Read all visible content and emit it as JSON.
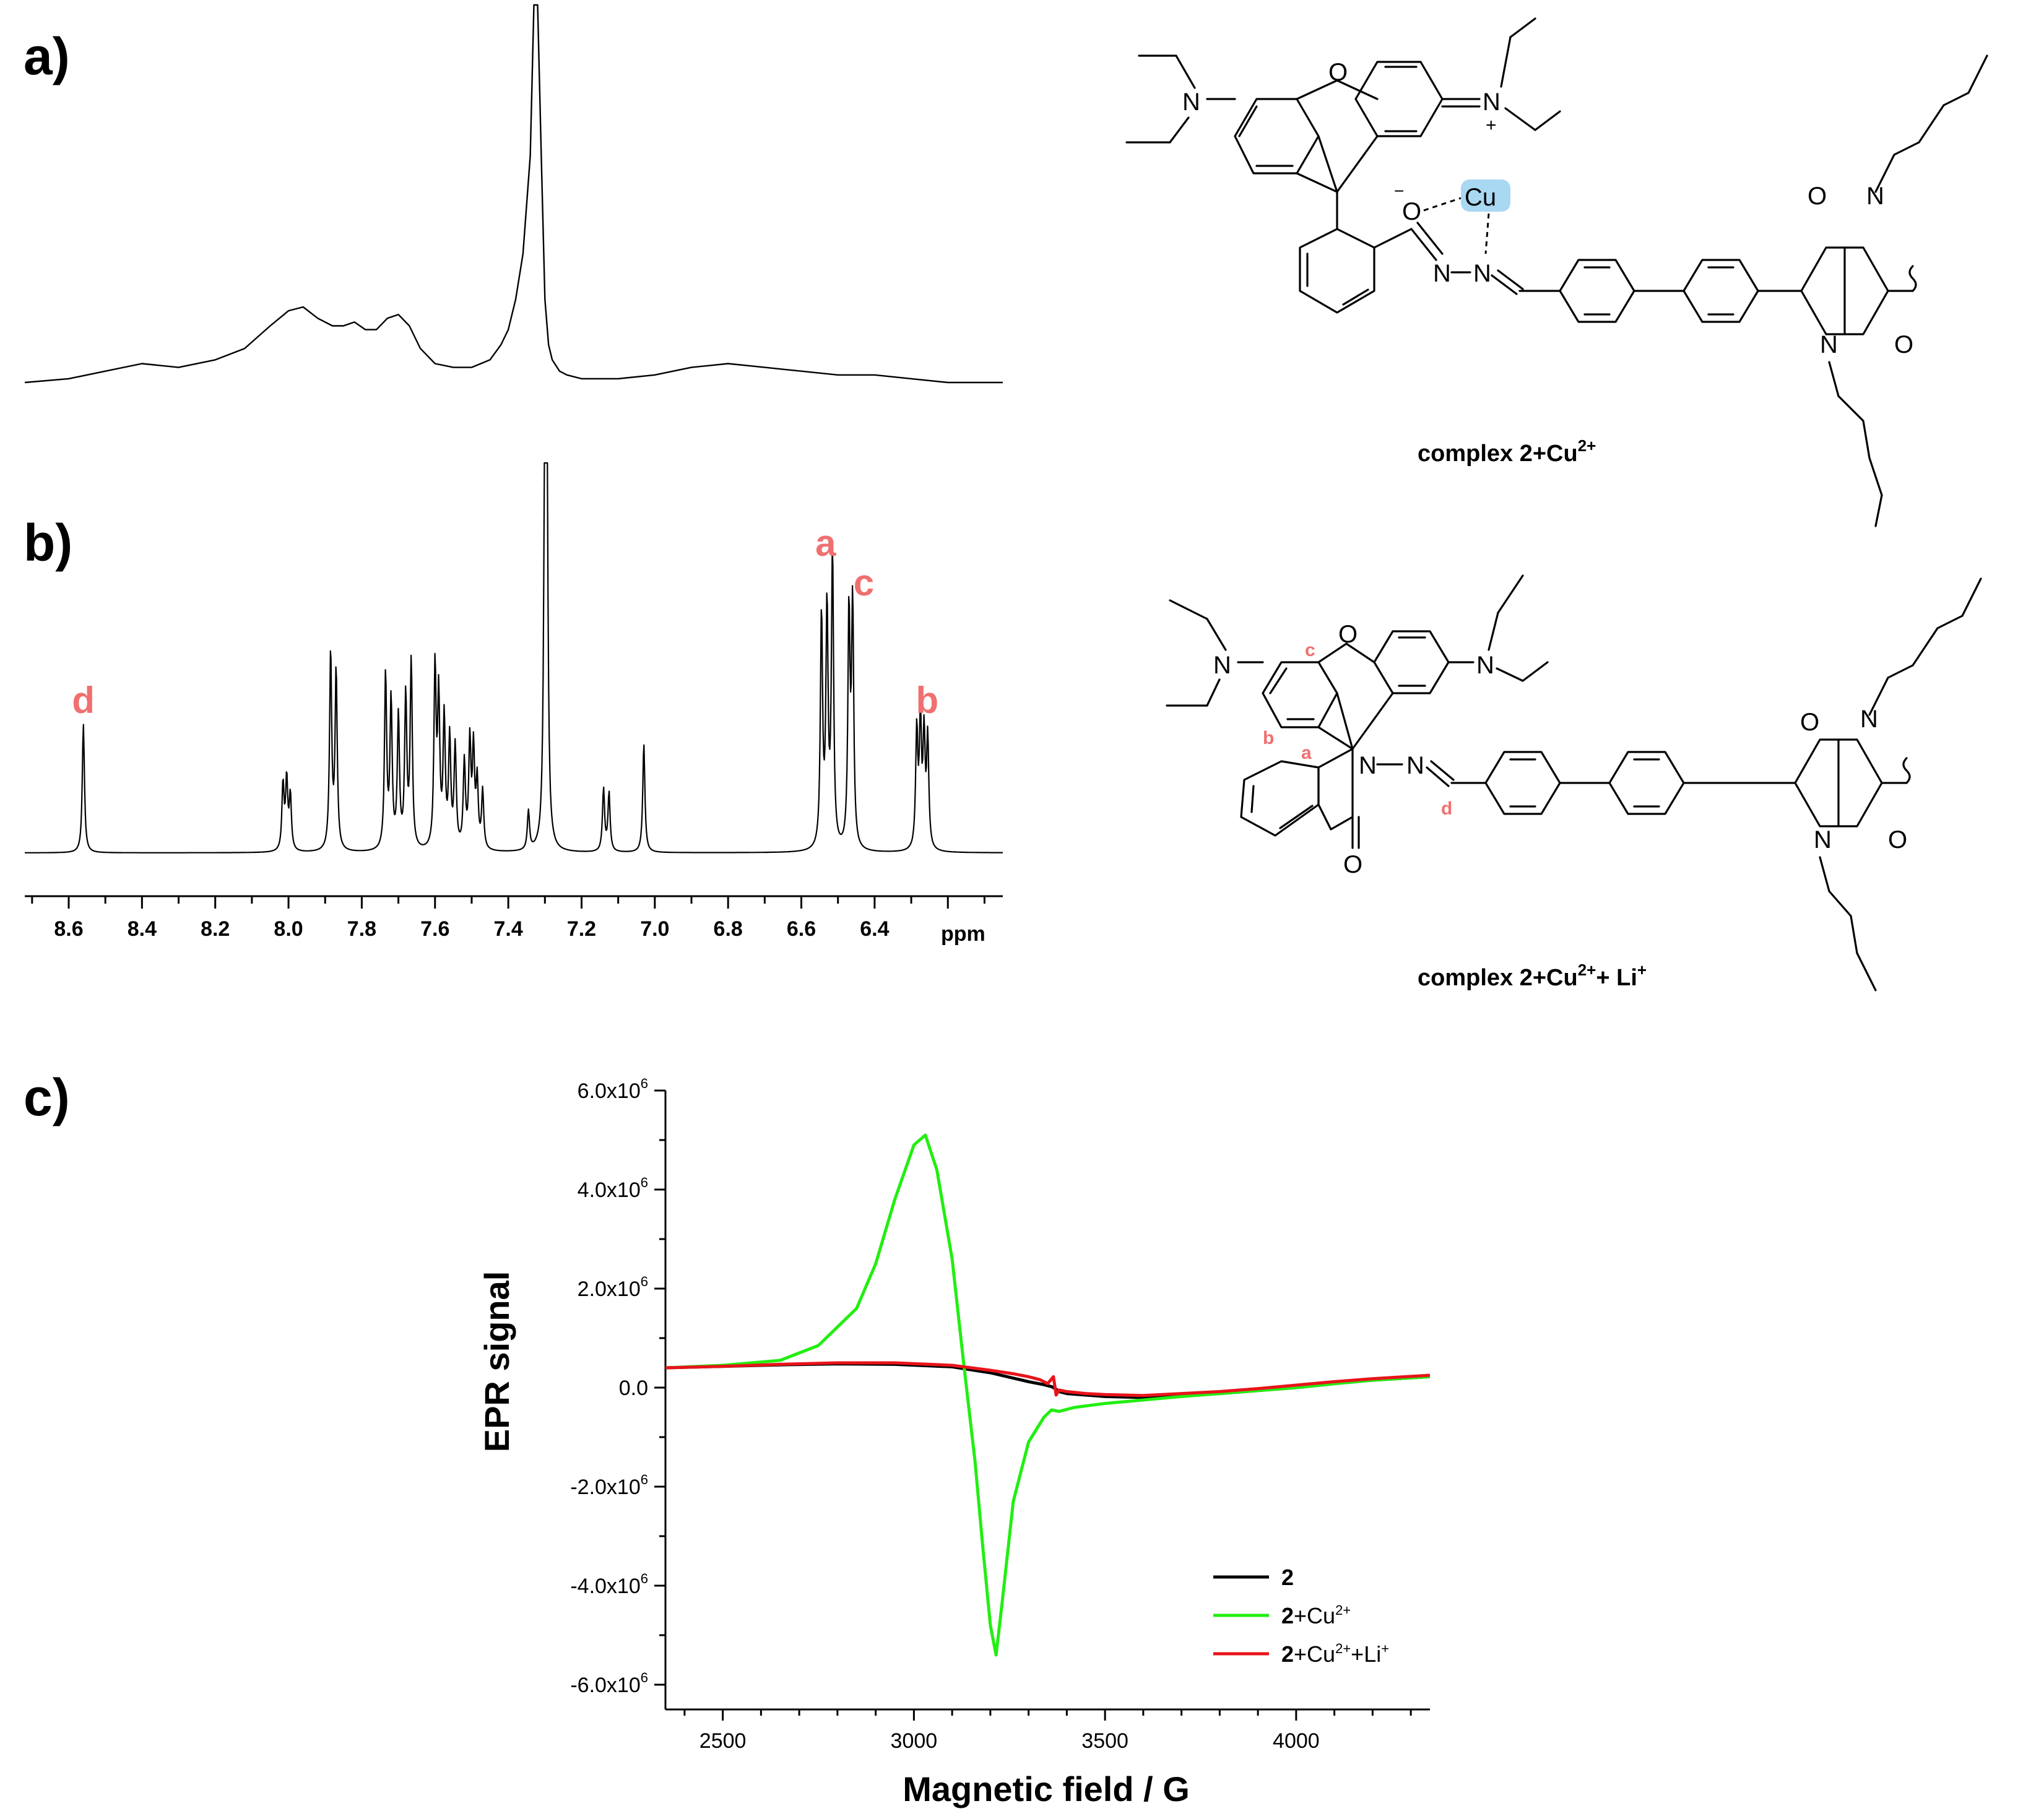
{
  "panels": {
    "a": "a)",
    "b": "b)",
    "c": "c)"
  },
  "nmr": {
    "x_ticks": [
      "8.6",
      "8.4",
      "8.2",
      "8.0",
      "7.8",
      "7.6",
      "7.4",
      "7.2",
      "7.0",
      "6.8",
      "6.6",
      "6.4"
    ],
    "unit": "ppm",
    "peak_labels": [
      {
        "text": "a",
        "ppm": 6.52
      },
      {
        "text": "c",
        "ppm": 6.46
      },
      {
        "text": "d",
        "ppm": 8.56
      },
      {
        "text": "b",
        "ppm": 6.27
      }
    ]
  },
  "structures": {
    "top_caption": {
      "main": "complex 2+Cu",
      "sup": "2+"
    },
    "bottom_caption": {
      "main": "complex 2+Cu",
      "sup1": "2+",
      "mid": "+ Li",
      "sup2": "+"
    },
    "metal_label": "Cu",
    "atom_labels": {
      "a": "a",
      "b": "b",
      "c": "c",
      "d": "d"
    },
    "highlight_color": "#a9d8f2"
  },
  "chart_data": [
    {
      "type": "line",
      "name": "nmr-a",
      "x": [
        8.72,
        8.6,
        8.5,
        8.4,
        8.3,
        8.2,
        8.12,
        8.05,
        8.0,
        7.96,
        7.92,
        7.88,
        7.85,
        7.82,
        7.79,
        7.76,
        7.73,
        7.7,
        7.67,
        7.64,
        7.6,
        7.55,
        7.5,
        7.45,
        7.42,
        7.4,
        7.38,
        7.36,
        7.34,
        7.33,
        7.32,
        7.31,
        7.3,
        7.29,
        7.28,
        7.26,
        7.24,
        7.2,
        7.1,
        7.0,
        6.9,
        6.8,
        6.7,
        6.6,
        6.5,
        6.4,
        6.3,
        6.2,
        6.05
      ],
      "y": [
        0.0,
        0.01,
        0.03,
        0.05,
        0.04,
        0.06,
        0.09,
        0.15,
        0.19,
        0.2,
        0.17,
        0.15,
        0.15,
        0.16,
        0.14,
        0.14,
        0.17,
        0.18,
        0.15,
        0.09,
        0.05,
        0.04,
        0.04,
        0.06,
        0.1,
        0.14,
        0.22,
        0.34,
        0.6,
        1.0,
        1.0,
        0.6,
        0.22,
        0.1,
        0.06,
        0.03,
        0.02,
        0.01,
        0.01,
        0.02,
        0.04,
        0.05,
        0.04,
        0.03,
        0.02,
        0.02,
        0.01,
        0.0,
        0.0
      ]
    },
    {
      "type": "line",
      "name": "nmr-b",
      "baseline_ppm": [
        8.72,
        6.05
      ],
      "peaks": [
        {
          "ppm": 8.56,
          "h": 0.33
        },
        {
          "ppm": 8.015,
          "h": 0.17
        },
        {
          "ppm": 8.005,
          "h": 0.18
        },
        {
          "ppm": 7.995,
          "h": 0.14
        },
        {
          "ppm": 7.885,
          "h": 0.51
        },
        {
          "ppm": 7.87,
          "h": 0.46
        },
        {
          "ppm": 7.735,
          "h": 0.45
        },
        {
          "ppm": 7.72,
          "h": 0.38
        },
        {
          "ppm": 7.7,
          "h": 0.34
        },
        {
          "ppm": 7.68,
          "h": 0.39
        },
        {
          "ppm": 7.665,
          "h": 0.48
        },
        {
          "ppm": 7.6,
          "h": 0.46
        },
        {
          "ppm": 7.59,
          "h": 0.38
        },
        {
          "ppm": 7.575,
          "h": 0.33
        },
        {
          "ppm": 7.56,
          "h": 0.28
        },
        {
          "ppm": 7.545,
          "h": 0.26
        },
        {
          "ppm": 7.52,
          "h": 0.22
        },
        {
          "ppm": 7.505,
          "h": 0.27
        },
        {
          "ppm": 7.495,
          "h": 0.25
        },
        {
          "ppm": 7.485,
          "h": 0.17
        },
        {
          "ppm": 7.47,
          "h": 0.15
        },
        {
          "ppm": 7.345,
          "h": 0.1
        },
        {
          "ppm": 7.3,
          "h": 1.0
        },
        {
          "ppm": 7.295,
          "h": 1.0
        },
        {
          "ppm": 7.14,
          "h": 0.16
        },
        {
          "ppm": 7.125,
          "h": 0.15
        },
        {
          "ppm": 7.03,
          "h": 0.28
        },
        {
          "ppm": 6.545,
          "h": 0.6
        },
        {
          "ppm": 6.53,
          "h": 0.61
        },
        {
          "ppm": 6.515,
          "h": 0.76
        },
        {
          "ppm": 6.47,
          "h": 0.6
        },
        {
          "ppm": 6.46,
          "h": 0.62
        },
        {
          "ppm": 6.285,
          "h": 0.3
        },
        {
          "ppm": 6.275,
          "h": 0.32
        },
        {
          "ppm": 6.265,
          "h": 0.28
        },
        {
          "ppm": 6.255,
          "h": 0.28
        }
      ]
    },
    {
      "type": "line",
      "title": "",
      "xlabel": "Magnetic field / G",
      "ylabel": "EPR signal",
      "xlim": [
        2350,
        4350
      ],
      "ylim": [
        -6500000.0,
        6000000.0
      ],
      "x_ticks": [
        2500,
        3000,
        3500,
        4000
      ],
      "y_ticks": [
        "6.0x10",
        "4.0x10",
        "2.0x10",
        "0.0",
        "-2.0x10",
        "-4.0x10",
        "-6.0x10"
      ],
      "y_tick_exp": "6",
      "legend_position": "bottom-right",
      "series": [
        {
          "name": "2",
          "name_sup": "",
          "name_tail": "",
          "color": "#000000",
          "x": [
            2350,
            2500,
            2650,
            2800,
            2950,
            3100,
            3200,
            3300,
            3340,
            3360,
            3370,
            3380,
            3400,
            3450,
            3500,
            3600,
            3700,
            3800,
            3900,
            4000,
            4100,
            4200,
            4350
          ],
          "y": [
            400000.0,
            430000.0,
            460000.0,
            480000.0,
            470000.0,
            420000.0,
            300000.0,
            120000.0,
            60000.0,
            20000.0,
            -20000.0,
            -80000.0,
            -120000.0,
            -150000.0,
            -180000.0,
            -200000.0,
            -160000.0,
            -120000.0,
            -60000.0,
            0.0,
            80000.0,
            150000.0,
            220000.0
          ]
        },
        {
          "name": "2",
          "name_sup": "2+",
          "name_tail": "+Cu",
          "color": "#22ee11",
          "x": [
            2350,
            2500,
            2650,
            2750,
            2850,
            2900,
            2950,
            3000,
            3030,
            3060,
            3100,
            3130,
            3160,
            3180,
            3200,
            3215,
            3230,
            3260,
            3300,
            3340,
            3360,
            3380,
            3420,
            3500,
            3600,
            3700,
            3800,
            3900,
            4000,
            4100,
            4200,
            4350
          ],
          "y": [
            400000.0,
            450000.0,
            550000.0,
            850000.0,
            1600000.0,
            2500000.0,
            3800000.0,
            4900000.0,
            5100000.0,
            4400000.0,
            2600000.0,
            500000.0,
            -1500000.0,
            -3200000.0,
            -4800000.0,
            -5400000.0,
            -4400000.0,
            -2300000.0,
            -1100000.0,
            -600000.0,
            -450000.0,
            -480000.0,
            -400000.0,
            -320000.0,
            -250000.0,
            -180000.0,
            -120000.0,
            -60000.0,
            0.0,
            80000.0,
            150000.0,
            220000.0
          ]
        },
        {
          "name": "2",
          "name_sup": "2+",
          "name_tail": "+Cu",
          "name_mid": "+Li",
          "name_sup2": "+",
          "color": "#e8141a",
          "x": [
            2350,
            2500,
            2650,
            2800,
            2950,
            3100,
            3200,
            3260,
            3300,
            3330,
            3350,
            3365,
            3372,
            3380,
            3400,
            3450,
            3500,
            3600,
            3700,
            3800,
            3900,
            4000,
            4100,
            4200,
            4350
          ],
          "y": [
            400000.0,
            430000.0,
            470000.0,
            500000.0,
            500000.0,
            450000.0,
            350000.0,
            280000.0,
            220000.0,
            160000.0,
            80000.0,
            220000.0,
            -150000.0,
            -50000.0,
            -80000.0,
            -120000.0,
            -140000.0,
            -160000.0,
            -120000.0,
            -80000.0,
            -20000.0,
            50000.0,
            120000.0,
            180000.0,
            250000.0
          ]
        }
      ]
    }
  ]
}
